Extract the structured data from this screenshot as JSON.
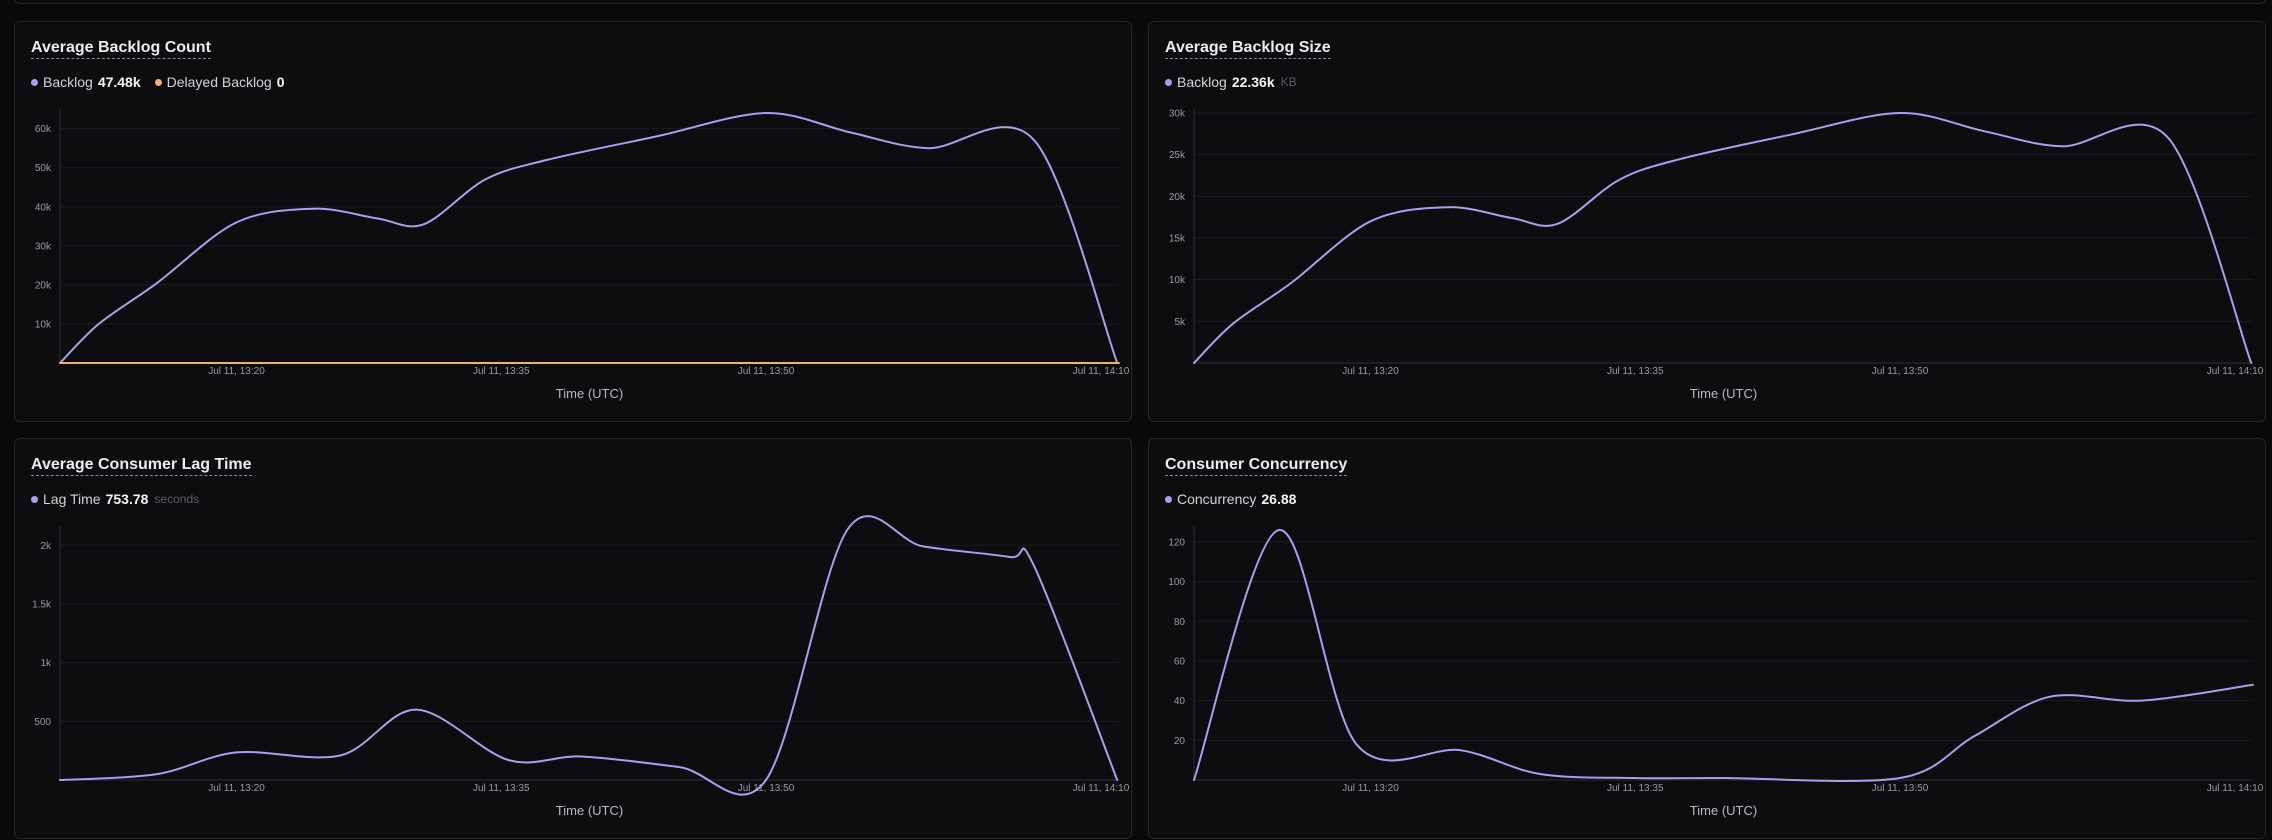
{
  "colors": {
    "backlog": "#a99ef0",
    "delayed": "#f0b07a",
    "grid": "#1c1c20",
    "axis": "#2e2e34"
  },
  "panels": [
    {
      "title": "Average Backlog Count",
      "legend": [
        {
          "label": "Backlog",
          "value": "47.48k",
          "unit": "",
          "color_key": "backlog"
        },
        {
          "label": "Delayed Backlog",
          "value": "0",
          "unit": "",
          "color_key": "delayed"
        }
      ]
    },
    {
      "title": "Average Backlog Size",
      "legend": [
        {
          "label": "Backlog",
          "value": "22.36k",
          "unit": "KB",
          "color_key": "backlog"
        }
      ]
    },
    {
      "title": "Average Consumer Lag Time",
      "legend": [
        {
          "label": "Lag Time",
          "value": "753.78",
          "unit": "seconds",
          "color_key": "backlog"
        }
      ]
    },
    {
      "title": "Consumer Concurrency",
      "legend": [
        {
          "label": "Concurrency",
          "value": "26.88",
          "unit": "",
          "color_key": "backlog"
        }
      ]
    }
  ],
  "chart_data": [
    {
      "type": "line",
      "title": "Average Backlog Count",
      "xlabel": "Time (UTC)",
      "ylabel": "",
      "x_tick_labels": [
        "Jul 11, 13:20",
        "Jul 11, 13:35",
        "Jul 11, 13:50",
        "Jul 11, 14:10"
      ],
      "x_tick_minutes": [
        20,
        35,
        50,
        70
      ],
      "y_tick_labels": [
        "10k",
        "20k",
        "30k",
        "40k",
        "50k",
        "60k"
      ],
      "y_tick_values": [
        10000,
        20000,
        30000,
        40000,
        50000,
        60000
      ],
      "xlim_minutes": [
        10,
        70
      ],
      "ylim": [
        0,
        64000
      ],
      "grid": true,
      "series": [
        {
          "name": "Backlog",
          "color_key": "backlog",
          "x": [
            10,
            12.2,
            15.5,
            20,
            24.4,
            28,
            30.6,
            34.1,
            37.6,
            43.8,
            50,
            54.8,
            59.2,
            65.2,
            69.9
          ],
          "y": [
            0,
            10000,
            20500,
            36000,
            39500,
            37000,
            35500,
            47000,
            52000,
            58000,
            64000,
            59000,
            55000,
            57000,
            0
          ]
        },
        {
          "name": "Delayed Backlog",
          "color_key": "delayed",
          "x": [
            10,
            70
          ],
          "y": [
            0,
            0
          ]
        }
      ]
    },
    {
      "type": "line",
      "title": "Average Backlog Size",
      "xlabel": "Time (UTC)",
      "ylabel": "",
      "x_tick_labels": [
        "Jul 11, 13:20",
        "Jul 11, 13:35",
        "Jul 11, 13:50",
        "Jul 11, 14:10"
      ],
      "x_tick_minutes": [
        20,
        35,
        50,
        70
      ],
      "y_tick_labels": [
        "5k",
        "10k",
        "15k",
        "20k",
        "25k",
        "30k"
      ],
      "y_tick_values": [
        5000,
        10000,
        15000,
        20000,
        25000,
        30000
      ],
      "xlim_minutes": [
        10,
        70
      ],
      "ylim": [
        0,
        30000
      ],
      "grid": true,
      "series": [
        {
          "name": "Backlog",
          "color_key": "backlog",
          "x": [
            10,
            12.2,
            15.5,
            20,
            24.4,
            28,
            30.6,
            34.1,
            37.6,
            43.8,
            50,
            54.8,
            59.2,
            65.2,
            69.9
          ],
          "y": [
            0,
            4700,
            9600,
            17000,
            18700,
            17400,
            16700,
            22000,
            24500,
            27400,
            30000,
            27800,
            26000,
            27000,
            0
          ]
        }
      ]
    },
    {
      "type": "line",
      "title": "Average Consumer Lag Time",
      "xlabel": "Time (UTC)",
      "ylabel": "",
      "x_tick_labels": [
        "Jul 11, 13:20",
        "Jul 11, 13:35",
        "Jul 11, 13:50",
        "Jul 11, 14:10"
      ],
      "x_tick_minutes": [
        20,
        35,
        50,
        70
      ],
      "y_tick_labels": [
        "500",
        "1k",
        "1.5k",
        "2k"
      ],
      "y_tick_values": [
        500,
        1000,
        1500,
        2000
      ],
      "xlim_minutes": [
        10,
        70
      ],
      "ylim": [
        0,
        2130
      ],
      "grid": true,
      "series": [
        {
          "name": "Lag Time",
          "color_key": "backlog",
          "x": [
            10,
            15.5,
            20,
            25.9,
            30.2,
            35.4,
            39.5,
            45.1,
            50,
            54.6,
            58.9,
            63.8,
            65.2,
            69.9
          ],
          "y": [
            0,
            50,
            235,
            210,
            600,
            170,
            200,
            110,
            0,
            2130,
            1990,
            1900,
            1820,
            0
          ]
        }
      ]
    },
    {
      "type": "line",
      "title": "Consumer Concurrency",
      "xlabel": "Time (UTC)",
      "ylabel": "",
      "x_tick_labels": [
        "Jul 11, 13:20",
        "Jul 11, 13:35",
        "Jul 11, 13:50",
        "Jul 11, 14:10"
      ],
      "x_tick_minutes": [
        20,
        35,
        50,
        70
      ],
      "y_tick_labels": [
        "20",
        "40",
        "60",
        "80",
        "100",
        "120"
      ],
      "y_tick_values": [
        20,
        40,
        60,
        80,
        100,
        120
      ],
      "xlim_minutes": [
        10,
        70
      ],
      "ylim": [
        0,
        126
      ],
      "grid": true,
      "series": [
        {
          "name": "Concurrency",
          "color_key": "backlog",
          "x": [
            10,
            14.8,
            19.2,
            25.1,
            29.6,
            35,
            40,
            50,
            54.2,
            58.5,
            63.7,
            70
          ],
          "y": [
            0,
            126,
            18,
            15,
            3,
            1,
            1,
            1,
            22,
            42,
            40,
            48
          ]
        }
      ]
    }
  ]
}
